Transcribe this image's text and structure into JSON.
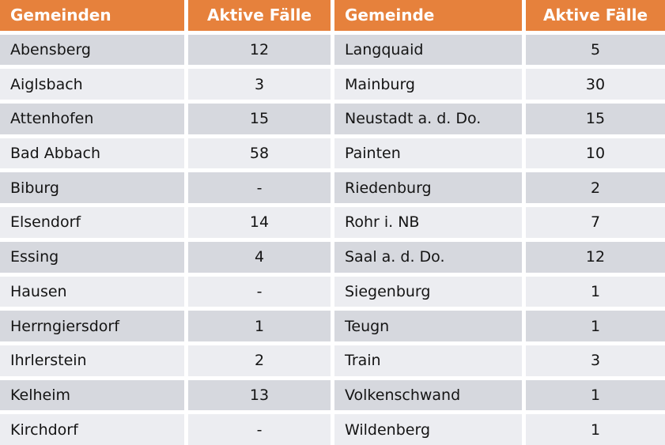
{
  "chart_data": {
    "type": "table",
    "columns": [
      "Gemeinden",
      "Aktive Fälle",
      "Gemeinde",
      "Aktive Fälle"
    ],
    "no_cases_symbol": "-",
    "rows": [
      {
        "left_name": "Abensberg",
        "left_value": "12",
        "right_name": "Langquaid",
        "right_value": "5"
      },
      {
        "left_name": "Aiglsbach",
        "left_value": "3",
        "right_name": "Mainburg",
        "right_value": "30"
      },
      {
        "left_name": "Attenhofen",
        "left_value": "15",
        "right_name": "Neustadt a. d. Do.",
        "right_value": "15"
      },
      {
        "left_name": "Bad Abbach",
        "left_value": "58",
        "right_name": "Painten",
        "right_value": "10"
      },
      {
        "left_name": "Biburg",
        "left_value": "-",
        "right_name": "Riedenburg",
        "right_value": "2"
      },
      {
        "left_name": "Elsendorf",
        "left_value": "14",
        "right_name": "Rohr i. NB",
        "right_value": "7"
      },
      {
        "left_name": "Essing",
        "left_value": "4",
        "right_name": "Saal a. d. Do.",
        "right_value": "12"
      },
      {
        "left_name": "Hausen",
        "left_value": "-",
        "right_name": "Siegenburg",
        "right_value": "1"
      },
      {
        "left_name": "Herrngiersdorf",
        "left_value": "1",
        "right_name": "Teugn",
        "right_value": "1"
      },
      {
        "left_name": "Ihrlerstein",
        "left_value": "2",
        "right_name": "Train",
        "right_value": "3"
      },
      {
        "left_name": "Kelheim",
        "left_value": "13",
        "right_name": "Volkenschwand",
        "right_value": "1"
      },
      {
        "left_name": "Kirchdorf",
        "left_value": "-",
        "right_name": "Wildenberg",
        "right_value": "1"
      }
    ]
  },
  "colors": {
    "header_bg": "#E6813C",
    "header_text": "#FFFFFF",
    "row_odd_bg": "#D6D8DE",
    "row_even_bg": "#ECEDF1",
    "body_text": "#141414",
    "gap_color": "#FFFFFF"
  }
}
